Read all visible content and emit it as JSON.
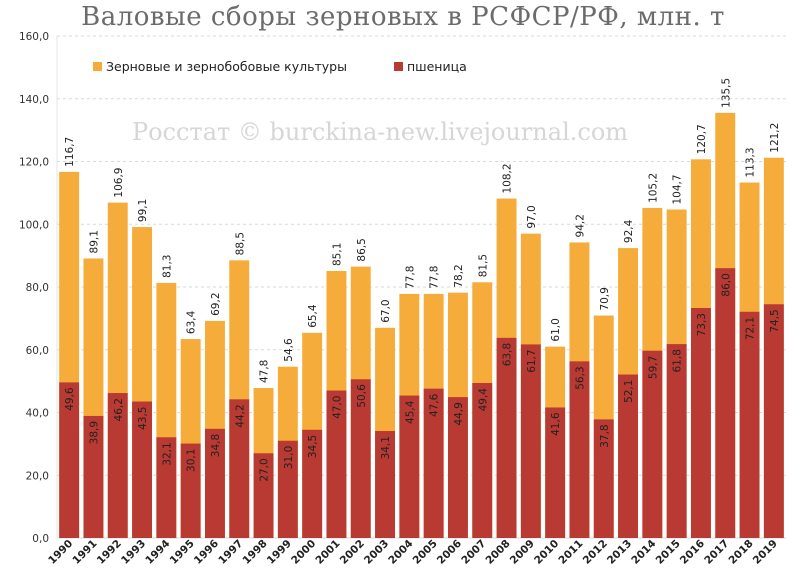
{
  "chart_data": {
    "type": "bar",
    "stacked_overlay": true,
    "title": "Валовые сборы зерновых в РСФСР/РФ, млн. т",
    "watermark": "Росстат © burckina-new.livejournal.com",
    "ylim": [
      0,
      160
    ],
    "yticks": [
      "0,0",
      "20,0",
      "40,0",
      "60,0",
      "80,0",
      "100,0",
      "120,0",
      "140,0",
      "160,0"
    ],
    "grid": true,
    "legend_position": "top-left",
    "categories": [
      "1990",
      "1991",
      "1992",
      "1993",
      "1994",
      "1995",
      "1996",
      "1997",
      "1998",
      "1999",
      "2000",
      "2001",
      "2002",
      "2003",
      "2004",
      "2005",
      "2006",
      "2007",
      "2008",
      "2009",
      "2010",
      "2011",
      "2012",
      "2013",
      "2014",
      "2015",
      "2016",
      "2017",
      "2018",
      "2019"
    ],
    "series": [
      {
        "name": "Зерновые и зернобобовые культуры",
        "color": "#F5AC3A",
        "values": [
          116.7,
          89.1,
          106.9,
          99.1,
          81.3,
          63.4,
          69.2,
          88.5,
          47.8,
          54.6,
          65.4,
          85.1,
          86.5,
          67.0,
          77.8,
          77.8,
          78.2,
          81.5,
          108.2,
          97.0,
          61.0,
          94.2,
          70.9,
          92.4,
          105.2,
          104.7,
          120.7,
          135.5,
          113.3,
          121.2
        ],
        "labels": [
          "116,7",
          "89,1",
          "106,9",
          "99,1",
          "81,3",
          "63,4",
          "69,2",
          "88,5",
          "47,8",
          "54,6",
          "65,4",
          "85,1",
          "86,5",
          "67,0",
          "77,8",
          "77,8",
          "78,2",
          "81,5",
          "108,2",
          "97,0",
          "61,0",
          "94,2",
          "70,9",
          "92,4",
          "105,2",
          "104,7",
          "120,7",
          "135,5",
          "113,3",
          "121,2"
        ]
      },
      {
        "name": "пшеница",
        "color": "#B83A32",
        "values": [
          49.6,
          38.9,
          46.2,
          43.5,
          32.1,
          30.1,
          34.8,
          44.2,
          27.0,
          31.0,
          34.5,
          47.0,
          50.6,
          34.1,
          45.4,
          47.6,
          44.9,
          49.4,
          63.8,
          61.7,
          41.6,
          56.3,
          37.8,
          52.1,
          59.7,
          61.8,
          73.3,
          86.0,
          72.1,
          74.5
        ],
        "labels": [
          "49,6",
          "38,9",
          "46,2",
          "43,5",
          "32,1",
          "30,1",
          "34,8",
          "44,2",
          "27,0",
          "31,0",
          "34,5",
          "47,0",
          "50,6",
          "34,1",
          "45,4",
          "47,6",
          "44,9",
          "49,4",
          "63,8",
          "61,7",
          "41,6",
          "56,3",
          "37,8",
          "52,1",
          "59,7",
          "61,8",
          "73,3",
          "86,0",
          "72,1",
          "74,5"
        ]
      }
    ]
  }
}
